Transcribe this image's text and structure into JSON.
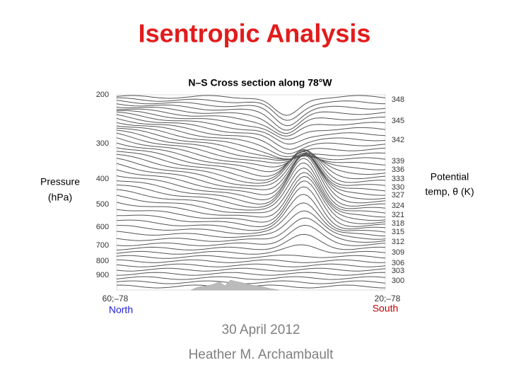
{
  "slide": {
    "title": "Isentropic Analysis",
    "figure": {
      "title": "N–S Cross section along 78°W",
      "left_label": [
        "Pressure",
        "(hPa)"
      ],
      "right_label": [
        "Potential",
        "temp, θ (K)"
      ],
      "pressure_labels": [
        "200",
        "300",
        "400",
        "500",
        "600",
        "700",
        "800",
        "900"
      ],
      "theta_labels": [
        "348",
        "345",
        "342",
        "339",
        "336",
        "333",
        "330",
        "327",
        "324",
        "321",
        "318",
        "315",
        "312",
        "309",
        "306",
        "303",
        "300"
      ],
      "left_corner": "60;–78",
      "right_corner": "20;–78",
      "north": "North",
      "south": "South"
    },
    "date": "30 April 2012",
    "author": "Heather M. Archambault"
  }
}
